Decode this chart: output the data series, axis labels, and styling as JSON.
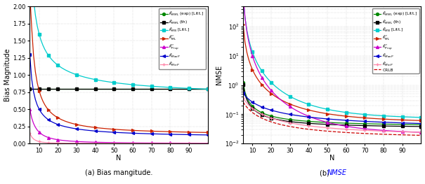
{
  "colors": {
    "K_MML_exp": "#008800",
    "K_MML_th": "#000000",
    "K_MN": "#00cccc",
    "K_ML": "#cc2200",
    "K_Prop": "#cc00cc",
    "K_MaxP": "#0000cc",
    "K_MinP": "#ff88aa",
    "CRLB": "#cc0000"
  },
  "markers": {
    "K_MML_exp": "o",
    "K_MML_th": "s",
    "K_MN": "s",
    "K_ML": ">",
    "K_Prop": "^",
    "K_MaxP": "<",
    "K_MinP": "+"
  },
  "legend_labels": {
    "K_MML_exp": "$\\hat{K}_{MML}$ (exp) [Litt.]",
    "K_MML_th": "$\\hat{K}_{MML}$ (th)",
    "K_MN": "$\\hat{K}_{MN}$ [Litt.]",
    "K_ML": "$\\hat{K}^*_{ML}$",
    "K_Prop": "$\\hat{K}^*_{Prop}$",
    "K_MaxP": "$\\hat{K}_{MaxP}$",
    "K_MinP": "$\\hat{K}_{MinP}$",
    "CRLB": "CRLB"
  },
  "xlabel": "N",
  "ylabel_a": "Bias Magnitude",
  "ylabel_b": "NMSE",
  "title_a": "(a) Bias mangitude.",
  "title_b_prefix": "(b) ",
  "title_b_colored": "NMSE",
  "title_b_suffix": ".",
  "title_b_color": "#0000ff",
  "ylim_a": [
    0,
    2.0
  ],
  "xlim": [
    5,
    100
  ],
  "xticks": [
    10,
    20,
    30,
    40,
    50,
    60,
    70,
    80,
    90
  ]
}
